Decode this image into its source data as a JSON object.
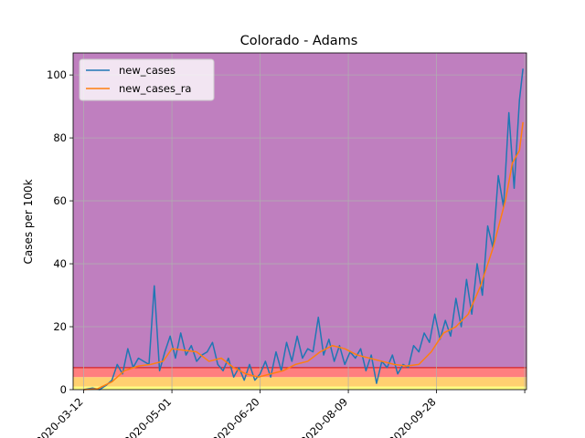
{
  "chart_data": {
    "type": "line",
    "title": "Colorado - Adams",
    "xlabel": "",
    "ylabel": "Cases per 100k",
    "x_range": [
      "2020-03-06",
      "2020-11-18"
    ],
    "ylim": [
      0,
      107
    ],
    "grid": true,
    "legend": {
      "placement": "top-left",
      "entries": [
        "new_cases",
        "new_cases_ra"
      ]
    },
    "x_ticks": [
      "2020-03-12",
      "2020-05-01",
      "2020-06-20",
      "2020-08-09",
      "2020-09-28",
      "2020-11-17"
    ],
    "x_tick_labels": [
      "2020-03-12",
      "2020-05-01",
      "2020-06-20",
      "2020-08-09",
      "2020-09-28",
      ""
    ],
    "y_ticks": [
      0,
      20,
      40,
      60,
      80,
      100
    ],
    "bands": [
      {
        "from": 0,
        "to": 1,
        "color": "#ffff80"
      },
      {
        "from": 1,
        "to": 4,
        "color": "#ffd070"
      },
      {
        "from": 4,
        "to": 7,
        "color": "#ff7f7f"
      },
      {
        "from": 7,
        "to": 107,
        "color": "#bf7fbf"
      }
    ],
    "threshold_line": {
      "y": 7,
      "color": "#d62728"
    },
    "colors": {
      "new_cases": "#1f77b4",
      "new_cases_ra": "#ff7f0e"
    },
    "series": [
      {
        "name": "new_cases",
        "x": [
          "2020-03-12",
          "2020-03-17",
          "2020-03-21",
          "2020-03-25",
          "2020-03-28",
          "2020-03-31",
          "2020-04-03",
          "2020-04-06",
          "2020-04-09",
          "2020-04-12",
          "2020-04-15",
          "2020-04-18",
          "2020-04-21",
          "2020-04-24",
          "2020-04-27",
          "2020-04-30",
          "2020-05-03",
          "2020-05-06",
          "2020-05-09",
          "2020-05-12",
          "2020-05-15",
          "2020-05-18",
          "2020-05-21",
          "2020-05-24",
          "2020-05-27",
          "2020-05-30",
          "2020-06-02",
          "2020-06-05",
          "2020-06-08",
          "2020-06-11",
          "2020-06-14",
          "2020-06-17",
          "2020-06-20",
          "2020-06-23",
          "2020-06-26",
          "2020-06-29",
          "2020-07-02",
          "2020-07-05",
          "2020-07-08",
          "2020-07-11",
          "2020-07-14",
          "2020-07-17",
          "2020-07-20",
          "2020-07-23",
          "2020-07-26",
          "2020-07-29",
          "2020-08-01",
          "2020-08-04",
          "2020-08-07",
          "2020-08-10",
          "2020-08-13",
          "2020-08-16",
          "2020-08-19",
          "2020-08-22",
          "2020-08-25",
          "2020-08-28",
          "2020-08-31",
          "2020-09-03",
          "2020-09-06",
          "2020-09-09",
          "2020-09-12",
          "2020-09-15",
          "2020-09-18",
          "2020-09-21",
          "2020-09-24",
          "2020-09-27",
          "2020-09-30",
          "2020-10-03",
          "2020-10-06",
          "2020-10-09",
          "2020-10-12",
          "2020-10-15",
          "2020-10-18",
          "2020-10-21",
          "2020-10-24",
          "2020-10-27",
          "2020-10-30",
          "2020-11-02",
          "2020-11-05",
          "2020-11-08",
          "2020-11-11",
          "2020-11-14",
          "2020-11-16"
        ],
        "values": [
          0,
          0.5,
          0,
          1.5,
          3,
          8,
          5,
          13,
          7,
          10,
          9,
          8,
          33,
          6,
          12,
          17,
          10,
          18,
          11,
          14,
          9,
          11,
          12,
          15,
          8,
          6,
          10,
          4,
          7,
          3,
          8,
          3,
          5,
          9,
          4,
          12,
          6,
          15,
          9,
          17,
          10,
          13,
          12,
          23,
          11,
          16,
          9,
          14,
          8,
          12,
          10,
          13,
          6,
          11,
          2,
          9,
          7,
          11,
          5,
          8,
          7,
          14,
          12,
          18,
          15,
          24,
          16,
          22,
          17,
          29,
          20,
          35,
          24,
          40,
          30,
          52,
          45,
          68,
          58,
          88,
          64,
          92,
          102
        ]
      },
      {
        "name": "new_cases_ra",
        "x": [
          "2020-03-12",
          "2020-03-20",
          "2020-03-28",
          "2020-04-04",
          "2020-04-12",
          "2020-04-19",
          "2020-04-26",
          "2020-05-01",
          "2020-05-08",
          "2020-05-15",
          "2020-05-22",
          "2020-05-29",
          "2020-06-05",
          "2020-06-12",
          "2020-06-19",
          "2020-06-26",
          "2020-07-03",
          "2020-07-10",
          "2020-07-17",
          "2020-07-24",
          "2020-07-31",
          "2020-08-07",
          "2020-08-14",
          "2020-08-21",
          "2020-08-28",
          "2020-09-04",
          "2020-09-11",
          "2020-09-18",
          "2020-09-25",
          "2020-10-02",
          "2020-10-09",
          "2020-10-16",
          "2020-10-23",
          "2020-10-30",
          "2020-11-06",
          "2020-11-10",
          "2020-11-14",
          "2020-11-16"
        ],
        "values": [
          0,
          0.3,
          2.5,
          6,
          7.5,
          8,
          9,
          13,
          12.5,
          12,
          9,
          10,
          7,
          5,
          4,
          5,
          6,
          8,
          9,
          12,
          14,
          13,
          11,
          10,
          9,
          8,
          7.5,
          8,
          12,
          18,
          20,
          24,
          33,
          45,
          60,
          72,
          76,
          85
        ]
      }
    ]
  }
}
